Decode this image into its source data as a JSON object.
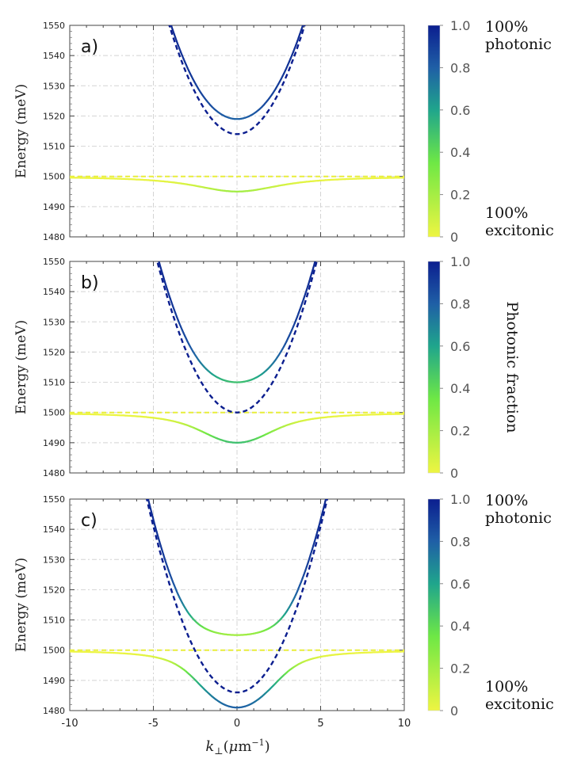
{
  "chart_data": [
    {
      "type": "line",
      "panel_label": "a)",
      "ylabel": "Energy  (meV)",
      "ylim": [
        1480,
        1550
      ],
      "xlim": [
        -10,
        10
      ],
      "yticks": [
        "1480",
        "1490",
        "1500",
        "1510",
        "1520",
        "1530",
        "1540",
        "1550"
      ],
      "exciton_energy": 1500,
      "cavity_min": 1514,
      "upper_min": 1519,
      "lower_min": 1495,
      "grid": true,
      "colorbar": {
        "ticks": [
          "0",
          "0.2",
          "0.4",
          "0.6",
          "0.8",
          "1.0"
        ],
        "top_label": [
          "100%",
          "photonic"
        ],
        "bottom_label": [
          "100%",
          "excitonic"
        ]
      }
    },
    {
      "type": "line",
      "panel_label": "b)",
      "ylabel": "Energy  (meV)",
      "ylim": [
        1480,
        1550
      ],
      "xlim": [
        -10,
        10
      ],
      "yticks": [
        "1480",
        "1490",
        "1500",
        "1510",
        "1520",
        "1530",
        "1540",
        "1550"
      ],
      "exciton_energy": 1500,
      "cavity_min": 1500,
      "upper_min": 1510,
      "lower_min": 1490,
      "grid": true,
      "colorbar": {
        "ticks": [
          "0",
          "0.2",
          "0.4",
          "0.6",
          "0.8",
          "1.0"
        ],
        "side_label": "Photonic fraction"
      }
    },
    {
      "type": "line",
      "panel_label": "c)",
      "ylabel": "Energy  (meV)",
      "ylim": [
        1480,
        1550
      ],
      "xlim": [
        -10,
        10
      ],
      "yticks": [
        "1480",
        "1490",
        "1500",
        "1510",
        "1520",
        "1530",
        "1540",
        "1550"
      ],
      "xticks": [
        "-10",
        "-5",
        "0",
        "5",
        "10"
      ],
      "xlabel": "k⊥(μm⁻¹)",
      "exciton_energy": 1500,
      "cavity_min": 1486,
      "upper_min": 1505,
      "lower_min": 1481,
      "grid": true,
      "colorbar": {
        "ticks": [
          "0",
          "0.2",
          "0.4",
          "0.6",
          "0.8",
          "1.0"
        ],
        "top_label": [
          "100%",
          "photonic"
        ],
        "bottom_label": [
          "100%",
          "excitonic"
        ]
      }
    }
  ],
  "colors": {
    "photonic": "#0b1e8f",
    "mid": "#1fa58c",
    "green": "#6ee845",
    "excitonic": "#eef542",
    "cavity_dashed": "#0b1e8f",
    "exciton_dashed": "#e8ee3a",
    "grid": "#d4d4d4"
  }
}
